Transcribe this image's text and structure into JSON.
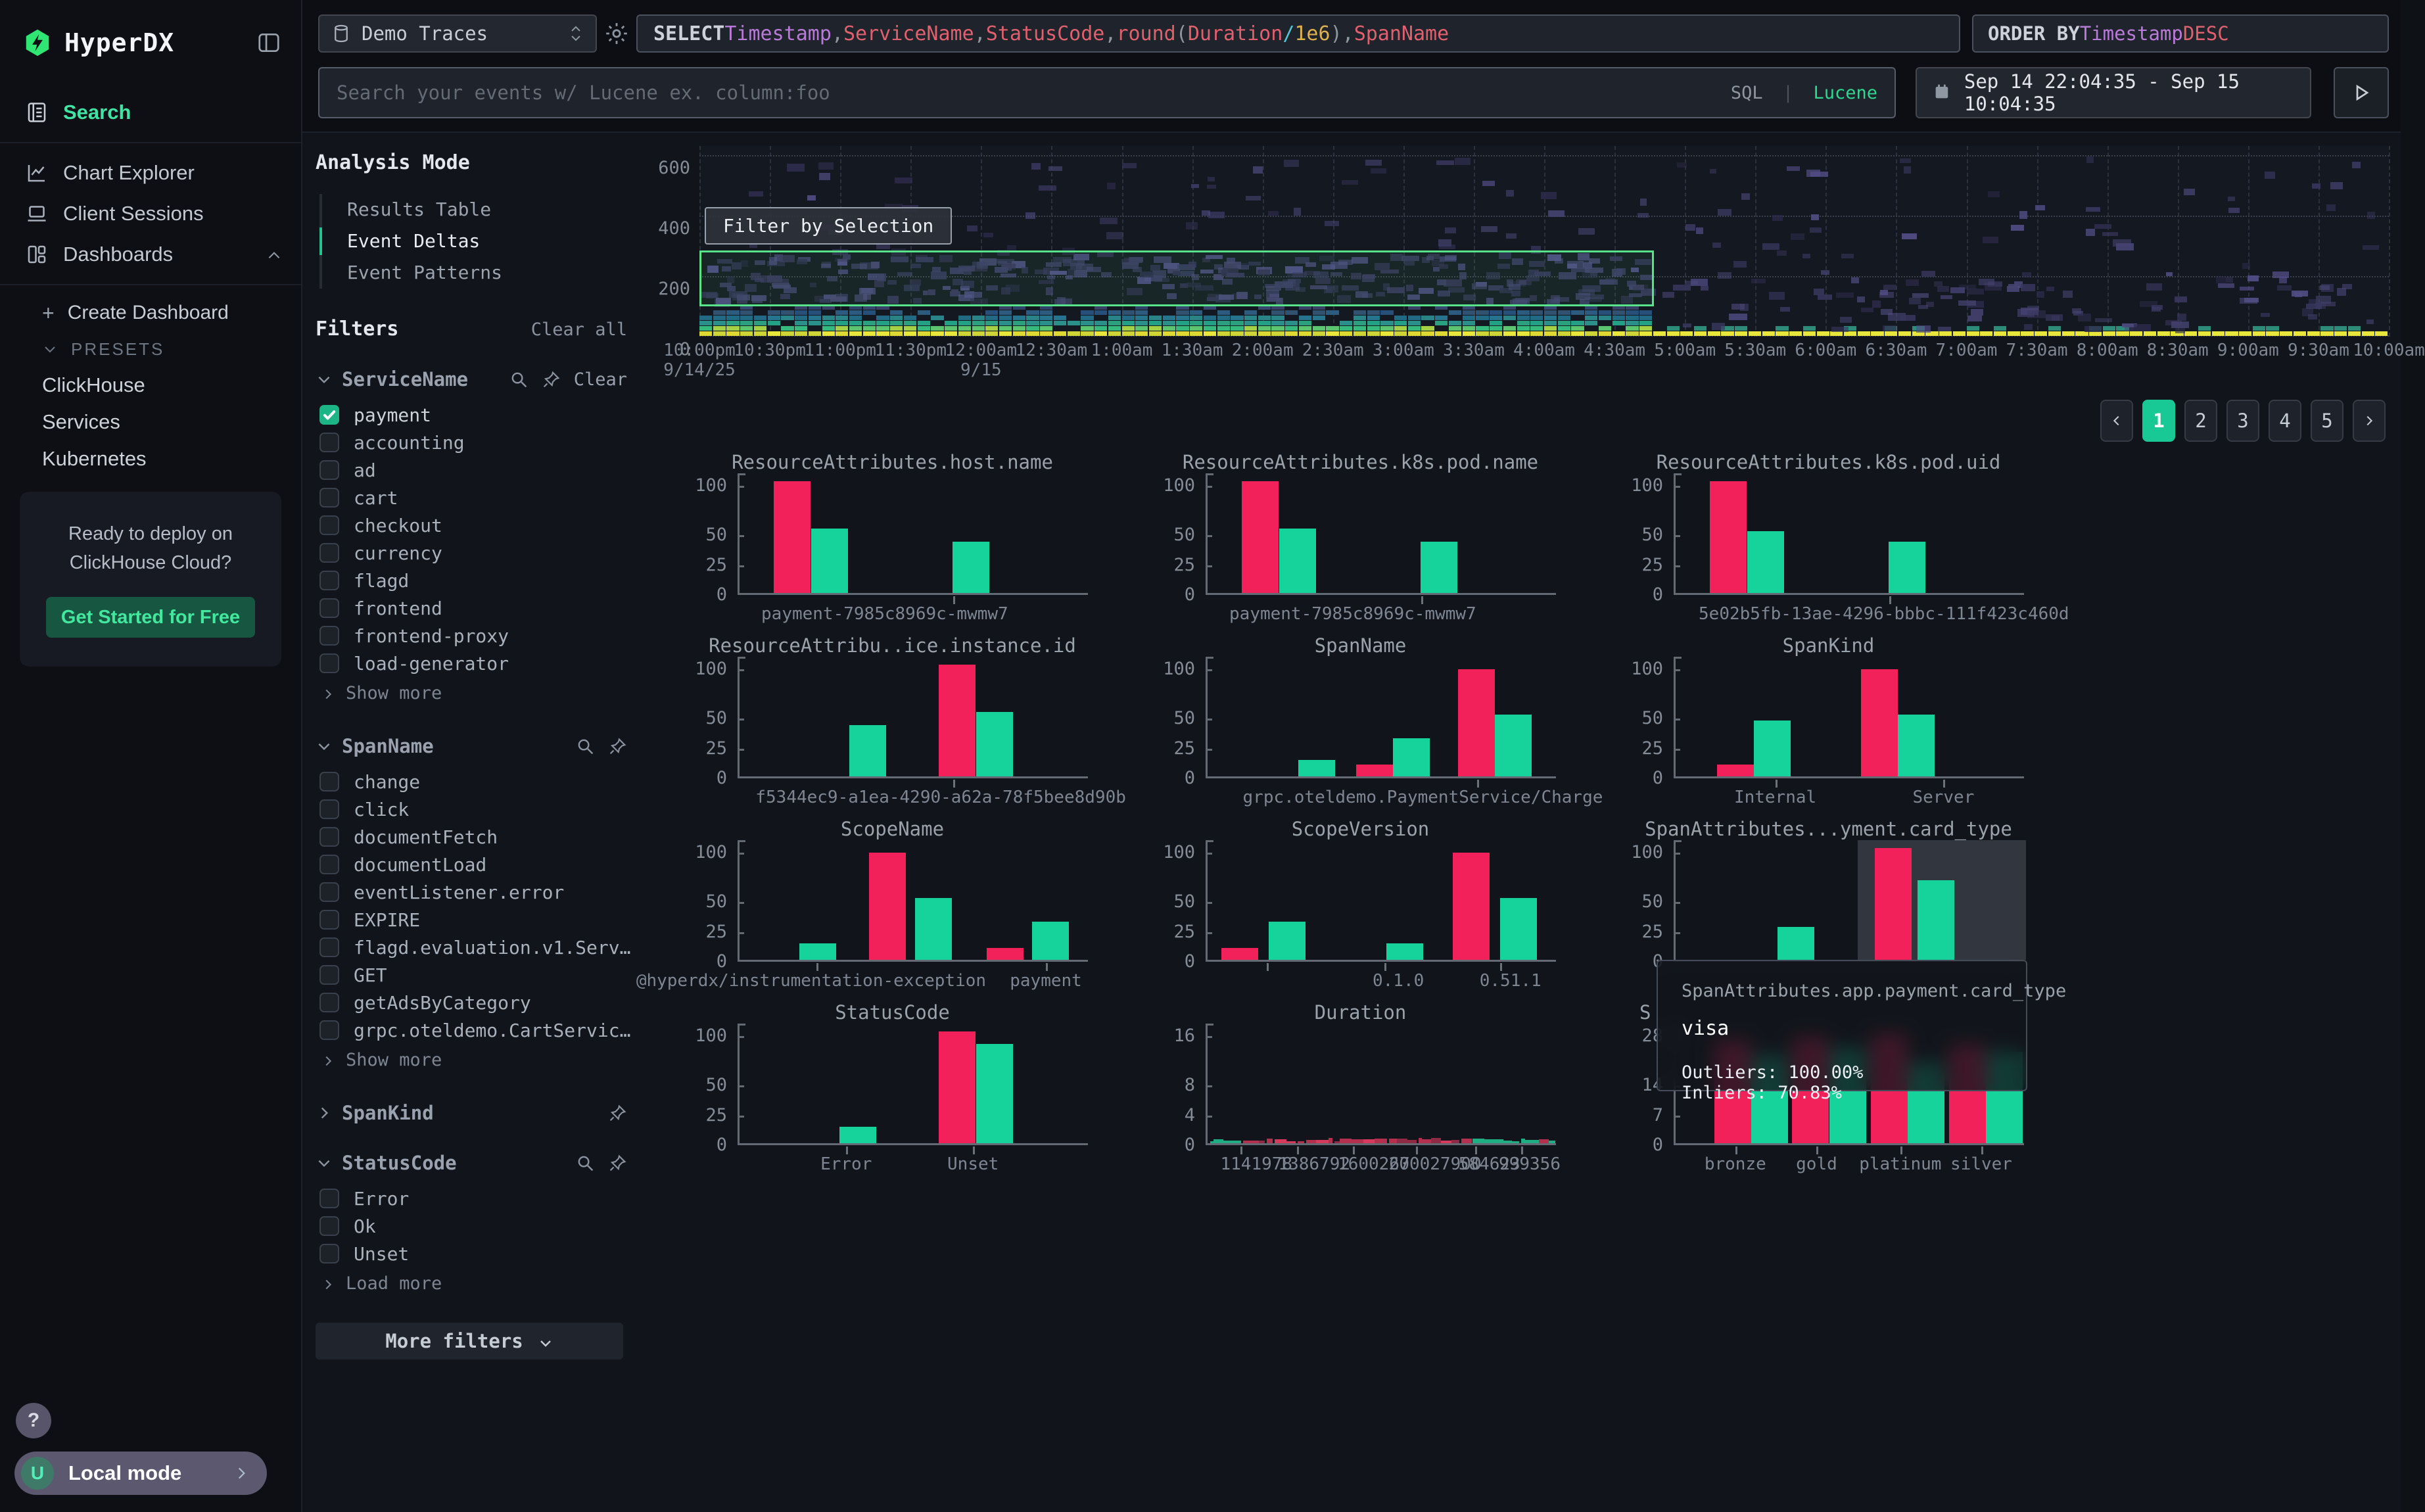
{
  "colors": {
    "pink": "#f3215a",
    "green": "#15d39b",
    "accent": "#22c48e"
  },
  "sidebar": {
    "logo": "HyperDX",
    "items": [
      {
        "label": "Search",
        "active": true
      },
      {
        "label": "Chart Explorer",
        "active": false
      },
      {
        "label": "Client Sessions",
        "active": false
      },
      {
        "label": "Dashboards",
        "active": false,
        "expanded": true
      }
    ],
    "create_dashboard": "Create Dashboard",
    "presets_label": "PRESETS",
    "preset_links": [
      "ClickHouse",
      "Services",
      "Kubernetes"
    ],
    "promo": {
      "line1": "Ready to deploy on",
      "line2": "ClickHouse Cloud?",
      "cta": "Get Started for Free"
    },
    "help": "?",
    "user": {
      "avatar": "U",
      "label": "Local mode"
    }
  },
  "topbar": {
    "source_select": "Demo Traces",
    "sql_tokens": [
      {
        "t": "SELECT",
        "c": "kw"
      },
      {
        "t": " ",
        "c": "p"
      },
      {
        "t": "Timestamp",
        "c": "ty"
      },
      {
        "t": ", ",
        "c": "p"
      },
      {
        "t": "ServiceName",
        "c": "nm"
      },
      {
        "t": ", ",
        "c": "p"
      },
      {
        "t": "StatusCode",
        "c": "nm"
      },
      {
        "t": ", ",
        "c": "p"
      },
      {
        "t": "round",
        "c": "nm"
      },
      {
        "t": "(",
        "c": "p"
      },
      {
        "t": "Duration",
        "c": "nm"
      },
      {
        "t": " ",
        "c": "p"
      },
      {
        "t": "/",
        "c": "op"
      },
      {
        "t": " ",
        "c": "p"
      },
      {
        "t": "1e6",
        "c": "num"
      },
      {
        "t": ")",
        "c": "p"
      },
      {
        "t": ", ",
        "c": "p"
      },
      {
        "t": "SpanName",
        "c": "nm"
      }
    ],
    "order_tokens": [
      {
        "t": "ORDER BY",
        "c": "kw"
      },
      {
        "t": " ",
        "c": "p"
      },
      {
        "t": "Timestamp",
        "c": "ty"
      },
      {
        "t": " ",
        "c": "p"
      },
      {
        "t": "DESC",
        "c": "nm"
      }
    ],
    "search_placeholder": "Search your events w/ Lucene ex. column:foo",
    "lang_toggle": {
      "sql": "SQL",
      "divider": "|",
      "lucene": "Lucene"
    },
    "date_range": "Sep 14 22:04:35 - Sep 15 10:04:35"
  },
  "filters_panel": {
    "analysis_mode": {
      "title": "Analysis Mode",
      "options": [
        "Results Table",
        "Event Deltas",
        "Event Patterns"
      ],
      "active": "Event Deltas"
    },
    "filters_title": "Filters",
    "clear_all": "Clear all",
    "facets": [
      {
        "name": "ServiceName",
        "expanded": true,
        "has_search": true,
        "has_pin": true,
        "clear": "Clear",
        "items": [
          {
            "label": "payment",
            "checked": true
          },
          {
            "label": "accounting",
            "checked": false
          },
          {
            "label": "ad",
            "checked": false
          },
          {
            "label": "cart",
            "checked": false
          },
          {
            "label": "checkout",
            "checked": false
          },
          {
            "label": "currency",
            "checked": false
          },
          {
            "label": "flagd",
            "checked": false
          },
          {
            "label": "frontend",
            "checked": false
          },
          {
            "label": "frontend-proxy",
            "checked": false
          },
          {
            "label": "load-generator",
            "checked": false
          }
        ],
        "more": "Show more"
      },
      {
        "name": "SpanName",
        "expanded": true,
        "has_search": true,
        "has_pin": true,
        "items": [
          {
            "label": "change",
            "checked": false
          },
          {
            "label": "click",
            "checked": false
          },
          {
            "label": "documentFetch",
            "checked": false
          },
          {
            "label": "documentLoad",
            "checked": false
          },
          {
            "label": "eventListener.error",
            "checked": false
          },
          {
            "label": "EXPIRE",
            "checked": false
          },
          {
            "label": "flagd.evaluation.v1.Serv…",
            "checked": false
          },
          {
            "label": "GET",
            "checked": false
          },
          {
            "label": "getAdsByCategory",
            "checked": false
          },
          {
            "label": "grpc.oteldemo.CartServic…",
            "checked": false
          }
        ],
        "more": "Show more"
      },
      {
        "name": "SpanKind",
        "expanded": false,
        "has_search": false,
        "has_pin": true
      },
      {
        "name": "StatusCode",
        "expanded": true,
        "has_search": true,
        "has_pin": true,
        "items": [
          {
            "label": "Error",
            "checked": false
          },
          {
            "label": "Ok",
            "checked": false
          },
          {
            "label": "Unset",
            "checked": false
          }
        ],
        "more": "Load more"
      }
    ],
    "more_filters": "More filters"
  },
  "heatmap_ui": {
    "filter_button": "Filter by Selection"
  },
  "pagination": {
    "prev": "‹",
    "pages": [
      "1",
      "2",
      "3",
      "4",
      "5"
    ],
    "active": "1",
    "next": "›"
  },
  "tooltip": {
    "header": "SpanAttributes.app.payment.card_type",
    "value": "visa",
    "outliers": "Outliers: 100.00%",
    "inliers": "Inliers: 70.83%"
  },
  "chart_data": [
    {
      "type": "heatmap",
      "key": "events-heatmap",
      "ymax": 630,
      "yticks": [
        600,
        400,
        200,
        0
      ],
      "x_ticks": [
        "10:00pm",
        "10:30pm",
        "11:00pm",
        "11:30pm",
        "12:00am",
        "12:30am",
        "1:00am",
        "1:30am",
        "2:00am",
        "2:30am",
        "3:00am",
        "3:30am",
        "4:00am",
        "4:30am",
        "5:00am",
        "5:30am",
        "6:00am",
        "6:30am",
        "7:00am",
        "7:30am",
        "8:00am",
        "8:30am",
        "9:00am",
        "9:30am",
        "10:00am"
      ],
      "date_labels": [
        {
          "text": "9/14/25",
          "tick_index": 0
        },
        {
          "text": "9/15",
          "tick_index": 4
        }
      ],
      "selection": {
        "y_from": 100,
        "y_to": 285,
        "x_start_frac": 0.0,
        "x_end_frac": 0.565
      },
      "band": {
        "dense_end_frac": 0.568
      }
    },
    {
      "type": "bar",
      "key": "host-name",
      "title": "ResourceAttributes.host.name",
      "ymax": 100,
      "yticks": [
        {
          "v": 100,
          "label": "100"
        },
        {
          "v": 50,
          "label": "50"
        },
        {
          "v": 25,
          "label": "25"
        },
        {
          "v": 0,
          "label": "0"
        }
      ],
      "bars": [
        {
          "c": "p",
          "v": 105,
          "x": 0.098
        },
        {
          "c": "g",
          "v": 55,
          "x": 0.204
        },
        {
          "c": "g",
          "v": 43,
          "x": 0.608
        }
      ],
      "xticks": [
        {
          "label": "payment-7985c8969c-mwmw7",
          "x": 0.615,
          "lx": 0.42
        }
      ]
    },
    {
      "type": "bar",
      "key": "k8s-pod-name",
      "title": "ResourceAttributes.k8s.pod.name",
      "ymax": 100,
      "yticks": [
        {
          "v": 100,
          "label": "100"
        },
        {
          "v": 50,
          "label": "50"
        },
        {
          "v": 25,
          "label": "25"
        },
        {
          "v": 0,
          "label": "0"
        }
      ],
      "bars": [
        {
          "c": "p",
          "v": 105,
          "x": 0.098
        },
        {
          "c": "g",
          "v": 55,
          "x": 0.204
        },
        {
          "c": "g",
          "v": 43,
          "x": 0.608
        }
      ],
      "xticks": [
        {
          "label": "payment-7985c8969c-mwmw7",
          "x": 0.615,
          "lx": 0.42
        }
      ]
    },
    {
      "type": "bar",
      "key": "k8s-pod-uid",
      "title": "ResourceAttributes.k8s.pod.uid",
      "ymax": 100,
      "yticks": [
        {
          "v": 100,
          "label": "100"
        },
        {
          "v": 50,
          "label": "50"
        },
        {
          "v": 25,
          "label": "25"
        },
        {
          "v": 0,
          "label": "0"
        }
      ],
      "bars": [
        {
          "c": "p",
          "v": 105,
          "x": 0.098
        },
        {
          "c": "g",
          "v": 52,
          "x": 0.204
        },
        {
          "c": "g",
          "v": 43,
          "x": 0.608
        }
      ],
      "xticks": [
        {
          "label": "5e02b5fb-13ae-4296-bbbc-111f423c460d",
          "x": 0.615,
          "lx": 0.6
        }
      ]
    },
    {
      "type": "bar",
      "key": "instance-id",
      "title": "ResourceAttribu..ice.instance.id",
      "ymax": 100,
      "yticks": [
        {
          "v": 100,
          "label": "100"
        },
        {
          "v": 50,
          "label": "50"
        },
        {
          "v": 25,
          "label": "25"
        },
        {
          "v": 0,
          "label": "0"
        }
      ],
      "bars": [
        {
          "c": "g",
          "v": 43,
          "x": 0.314
        },
        {
          "c": "p",
          "v": 105,
          "x": 0.569
        },
        {
          "c": "g",
          "v": 55,
          "x": 0.675
        }
      ],
      "xticks": [
        {
          "label": "f5344ec9-a1ea-4290-a62a-78f5bee8d90b",
          "x": 0.615,
          "lx": 0.58
        }
      ]
    },
    {
      "type": "bar",
      "key": "span-name",
      "title": "SpanName",
      "ymax": 100,
      "yticks": [
        {
          "v": 100,
          "label": "100"
        },
        {
          "v": 50,
          "label": "50"
        },
        {
          "v": 25,
          "label": "25"
        },
        {
          "v": 0,
          "label": "0"
        }
      ],
      "bars": [
        {
          "c": "g",
          "v": 14,
          "x": 0.259
        },
        {
          "c": "p",
          "v": 10,
          "x": 0.424
        },
        {
          "c": "g",
          "v": 32,
          "x": 0.529
        },
        {
          "c": "p",
          "v": 98,
          "x": 0.714
        },
        {
          "c": "g",
          "v": 52,
          "x": 0.82
        }
      ],
      "xticks": [
        {
          "label": "grpc.oteldemo.PaymentService/Charge",
          "x": 0.775,
          "lx": 0.62
        }
      ]
    },
    {
      "type": "bar",
      "key": "span-kind",
      "title": "SpanKind",
      "ymax": 100,
      "yticks": [
        {
          "v": 100,
          "label": "100"
        },
        {
          "v": 50,
          "label": "50"
        },
        {
          "v": 25,
          "label": "25"
        },
        {
          "v": 0,
          "label": "0"
        }
      ],
      "bars": [
        {
          "c": "p",
          "v": 10,
          "x": 0.118
        },
        {
          "c": "g",
          "v": 47,
          "x": 0.224
        },
        {
          "c": "p",
          "v": 98,
          "x": 0.53
        },
        {
          "c": "g",
          "v": 52,
          "x": 0.635
        }
      ],
      "xticks": [
        {
          "label": "Internal",
          "x": 0.29
        },
        {
          "label": "Server",
          "x": 0.77
        }
      ]
    },
    {
      "type": "bar",
      "key": "scope-name",
      "title": "ScopeName",
      "ymax": 100,
      "yticks": [
        {
          "v": 100,
          "label": "100"
        },
        {
          "v": 50,
          "label": "50"
        },
        {
          "v": 25,
          "label": "25"
        },
        {
          "v": 0,
          "label": "0"
        }
      ],
      "bars": [
        {
          "c": "g",
          "v": 14,
          "x": 0.17
        },
        {
          "c": "p",
          "v": 98,
          "x": 0.37
        },
        {
          "c": "g",
          "v": 52,
          "x": 0.5
        },
        {
          "c": "p",
          "v": 10,
          "x": 0.705
        },
        {
          "c": "g",
          "v": 32,
          "x": 0.835
        }
      ],
      "xticks": [
        {
          "label": "@hyperdx/instrumentation-exception",
          "x": 0.225,
          "lx": 0.21
        },
        {
          "label": "payment",
          "x": 0.88
        }
      ]
    },
    {
      "type": "bar",
      "key": "scope-version",
      "title": "ScopeVersion",
      "ymax": 100,
      "yticks": [
        {
          "v": 100,
          "label": "100"
        },
        {
          "v": 50,
          "label": "50"
        },
        {
          "v": 25,
          "label": "25"
        },
        {
          "v": 0,
          "label": "0"
        }
      ],
      "bars": [
        {
          "c": "p",
          "v": 10,
          "x": 0.04
        },
        {
          "c": "g",
          "v": 32,
          "x": 0.175
        },
        {
          "c": "g",
          "v": 14,
          "x": 0.51
        },
        {
          "c": "p",
          "v": 98,
          "x": 0.7
        },
        {
          "c": "g",
          "v": 52,
          "x": 0.835
        }
      ],
      "xticks": [
        {
          "label": "",
          "x": 0.175
        },
        {
          "label": "0.1.0",
          "x": 0.51,
          "lx": 0.55
        },
        {
          "label": "0.51.1",
          "x": 0.84,
          "lx": 0.87
        }
      ]
    },
    {
      "type": "bar",
      "key": "card-type",
      "title": "SpanAttributes...yment.card_type",
      "ymax": 100,
      "yticks": [
        {
          "v": 100,
          "label": "100"
        },
        {
          "v": 50,
          "label": "50"
        },
        {
          "v": 25,
          "label": "25"
        },
        {
          "v": 0,
          "label": "0"
        }
      ],
      "highlight": {
        "x0": 0.52,
        "x1": 1.0
      },
      "bars": [
        {
          "c": "g",
          "v": 28,
          "x": 0.29
        },
        {
          "c": "p",
          "v": 105,
          "x": 0.569
        },
        {
          "c": "g",
          "v": 70,
          "x": 0.69
        }
      ],
      "xticks": []
    },
    {
      "type": "bar",
      "key": "status-code",
      "title": "StatusCode",
      "ymax": 100,
      "yticks": [
        {
          "v": 100,
          "label": "100"
        },
        {
          "v": 50,
          "label": "50"
        },
        {
          "v": 25,
          "label": "25"
        },
        {
          "v": 0,
          "label": "0"
        }
      ],
      "bars": [
        {
          "c": "g",
          "v": 14,
          "x": 0.286
        },
        {
          "c": "p",
          "v": 105,
          "x": 0.569
        },
        {
          "c": "g",
          "v": 90,
          "x": 0.675
        }
      ],
      "xticks": [
        {
          "label": "Error",
          "x": 0.31
        },
        {
          "label": "Unset",
          "x": 0.672
        }
      ]
    },
    {
      "type": "bar",
      "key": "duration",
      "title": "Duration",
      "ymax": 16,
      "strip": true,
      "yticks": [
        {
          "v": 16,
          "label": "16"
        },
        {
          "v": 8,
          "label": "8"
        },
        {
          "v": 4,
          "label": "4"
        },
        {
          "v": 0,
          "label": "0"
        }
      ],
      "bars": [],
      "xticks": [
        {
          "label": "1141978",
          "x": 0.1,
          "lx": 0.145
        },
        {
          "label": "1386792",
          "x": 0.26,
          "lx": 0.31
        },
        {
          "label": "1600267",
          "x": 0.42,
          "lx": 0.48
        },
        {
          "label": "200027900",
          "x": 0.6,
          "lx": 0.655
        },
        {
          "label": "584623",
          "x": 0.77,
          "lx": 0.81
        },
        {
          "label": "999356",
          "x": 0.9,
          "lx": 0.925
        }
      ]
    },
    {
      "type": "bar",
      "key": "loyalty-occluded",
      "title": "S",
      "occluded": true,
      "ymax": 28,
      "yticks": [
        {
          "v": 28,
          "label": "28"
        },
        {
          "v": 14,
          "label": "14"
        },
        {
          "v": 7,
          "label": "7"
        },
        {
          "v": 0,
          "label": "0"
        }
      ],
      "bars": [
        {
          "c": "p",
          "v": 26,
          "x": 0.11
        },
        {
          "c": "g",
          "v": 22,
          "x": 0.216
        },
        {
          "c": "p",
          "v": 27,
          "x": 0.333
        },
        {
          "c": "g",
          "v": 24,
          "x": 0.439
        },
        {
          "c": "p",
          "v": 28,
          "x": 0.557
        },
        {
          "c": "g",
          "v": 20,
          "x": 0.663
        },
        {
          "c": "p",
          "v": 25,
          "x": 0.78
        },
        {
          "c": "g",
          "v": 23,
          "x": 0.886
        }
      ],
      "xticks": [
        {
          "label": "bronze",
          "x": 0.176
        },
        {
          "label": "gold",
          "x": 0.408
        },
        {
          "label": "platinum",
          "x": 0.647
        },
        {
          "label": "silver",
          "x": 0.878
        }
      ]
    }
  ]
}
